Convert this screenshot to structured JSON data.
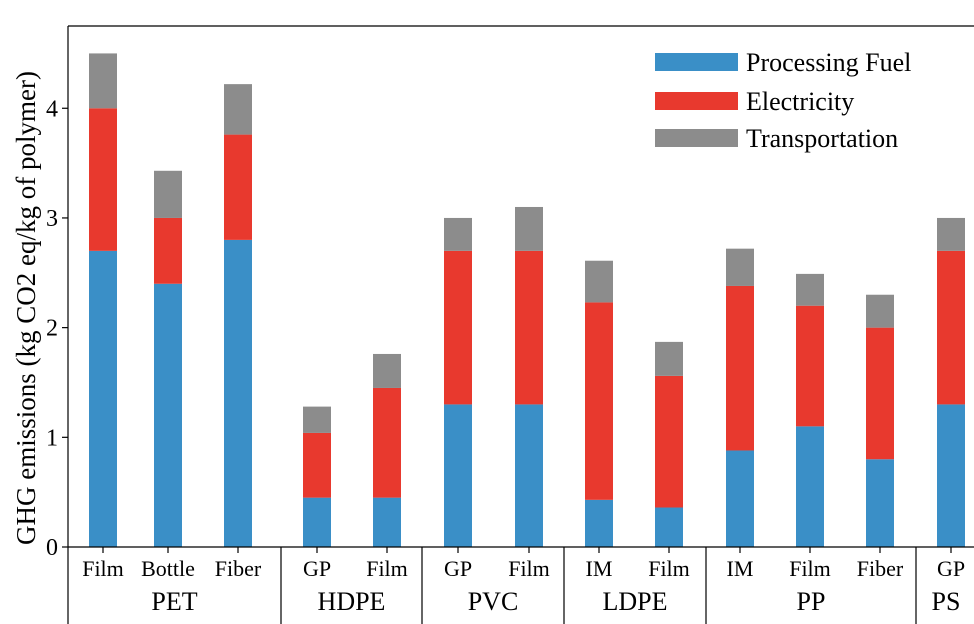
{
  "chart_data": {
    "type": "bar",
    "stacked": true,
    "ylabel": "GHG emissions (kg CO2 eq/kg of polymer)",
    "xlabel": "",
    "title": "",
    "ylim": [
      0,
      4.75
    ],
    "yticks": [
      "0",
      "1",
      "2",
      "3",
      "4"
    ],
    "grid": false,
    "legend_position": "top-right",
    "categories": [
      "Film",
      "Bottle",
      "Fiber",
      "GP",
      "Film",
      "GP",
      "Film",
      "IM",
      "Film",
      "IM",
      "Film",
      "Fiber",
      "GP"
    ],
    "groups": [
      {
        "label": "PET",
        "count": 3
      },
      {
        "label": "HDPE",
        "count": 2
      },
      {
        "label": "PVC",
        "count": 2
      },
      {
        "label": "LDPE",
        "count": 2
      },
      {
        "label": "PP",
        "count": 3
      },
      {
        "label": "PS",
        "count": 1
      }
    ],
    "series": [
      {
        "name": "Processing Fuel",
        "color": "#3a8fc7",
        "values": [
          2.7,
          2.4,
          2.8,
          0.45,
          0.45,
          1.3,
          1.3,
          0.43,
          0.36,
          0.88,
          1.1,
          0.8,
          1.3
        ]
      },
      {
        "name": "Electricity",
        "color": "#e8392e",
        "values": [
          1.3,
          0.6,
          0.96,
          0.59,
          1.0,
          1.4,
          1.4,
          1.8,
          1.2,
          1.5,
          1.1,
          1.2,
          1.4
        ]
      },
      {
        "name": "Transportation",
        "color": "#8c8c8c",
        "values": [
          0.5,
          0.43,
          0.46,
          0.24,
          0.31,
          0.3,
          0.4,
          0.38,
          0.31,
          0.34,
          0.29,
          0.3,
          0.3
        ]
      }
    ]
  }
}
